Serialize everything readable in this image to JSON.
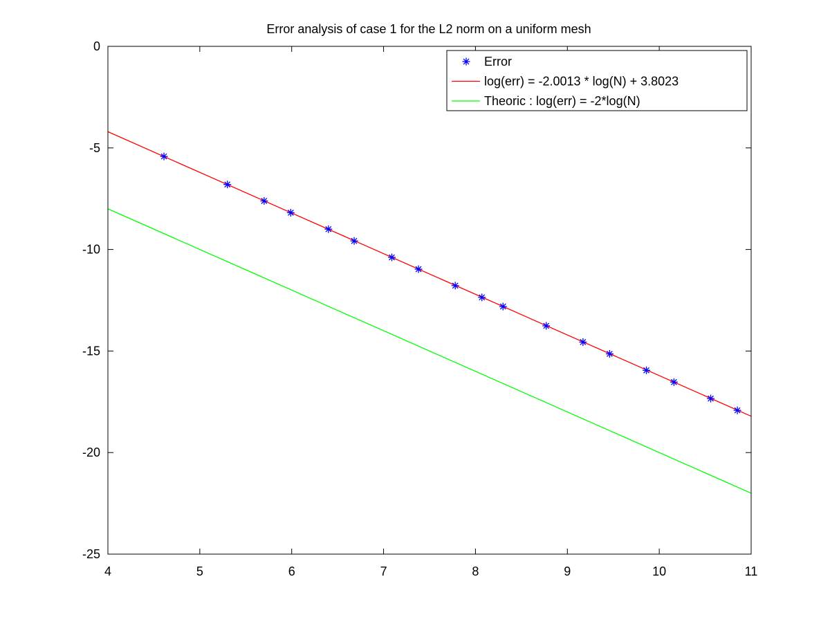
{
  "chart_data": {
    "type": "line",
    "title": "Error analysis of case 1 for the L2 norm on a uniform mesh",
    "xlabel": "",
    "ylabel": "",
    "xlim": [
      4,
      11
    ],
    "ylim": [
      -25,
      0
    ],
    "x_ticks": [
      "4",
      "5",
      "6",
      "7",
      "8",
      "9",
      "10",
      "11"
    ],
    "y_ticks": [
      "0",
      "-5",
      "-10",
      "-15",
      "-20",
      "-25"
    ],
    "grid": false,
    "legend_position": "top-right",
    "series": [
      {
        "name": "Error",
        "kind": "scatter",
        "marker": "asterisk",
        "color": "#0000ff",
        "x": [
          4.61,
          5.3,
          5.7,
          5.99,
          6.4,
          6.68,
          7.09,
          7.38,
          7.78,
          8.07,
          8.3,
          8.77,
          9.17,
          9.46,
          9.86,
          10.16,
          10.56,
          10.85
        ],
        "y": [
          -5.42,
          -6.8,
          -7.61,
          -8.19,
          -9.0,
          -9.58,
          -10.39,
          -10.97,
          -11.78,
          -12.36,
          -12.81,
          -13.76,
          -14.56,
          -15.14,
          -15.95,
          -16.53,
          -17.34,
          -17.92
        ]
      },
      {
        "name": "log(err) = -2.0013 * log(N) + 3.8023",
        "kind": "line",
        "color": "#ff0000",
        "x": [
          4,
          11
        ],
        "y": [
          -4.203,
          -18.212
        ]
      },
      {
        "name": "Theoric : log(err) = -2*log(N)",
        "kind": "line",
        "color": "#00ff00",
        "x": [
          4,
          11
        ],
        "y": [
          -8,
          -22
        ]
      }
    ]
  }
}
